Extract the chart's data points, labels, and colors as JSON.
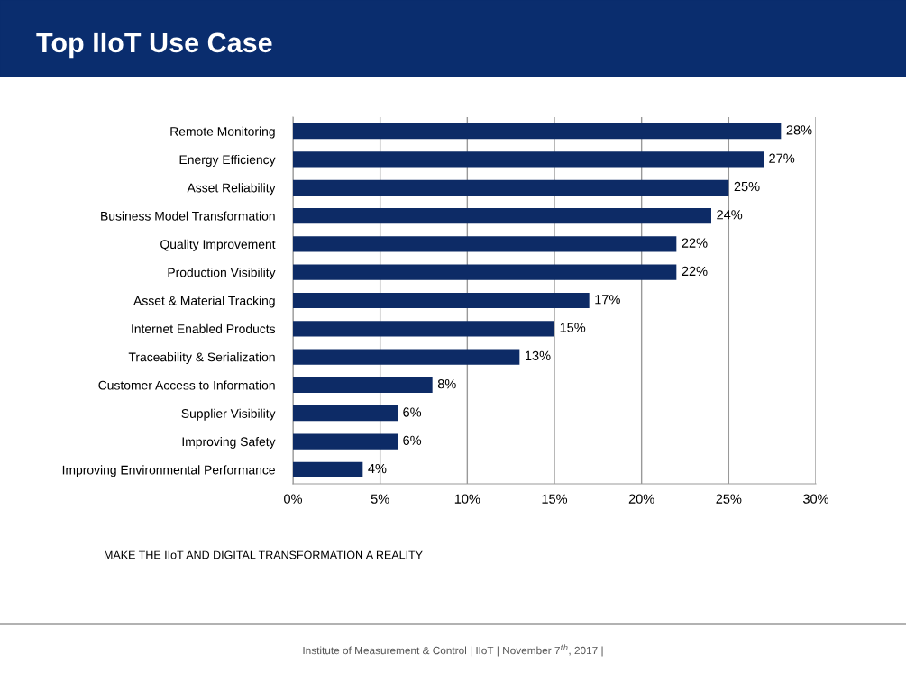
{
  "chart_data": {
    "type": "bar",
    "orientation": "horizontal",
    "title": "Top IIoT Use Case",
    "categories": [
      "Remote Monitoring",
      "Energy Efficiency",
      "Asset Reliability",
      "Business Model Transformation",
      "Quality Improvement",
      "Production Visibility",
      "Asset & Material Tracking",
      "Internet Enabled Products",
      "Traceability & Serialization",
      "Customer Access to Information",
      "Supplier Visibility",
      "Improving Safety",
      "Improving Environmental Performance"
    ],
    "values": [
      28,
      27,
      25,
      24,
      22,
      22,
      17,
      15,
      13,
      8,
      6,
      6,
      4
    ],
    "value_labels": [
      "28%",
      "27%",
      "25%",
      "24%",
      "22%",
      "22%",
      "17%",
      "15%",
      "13%",
      "8%",
      "6%",
      "6%",
      "4%"
    ],
    "color": "#0d2b66",
    "xlim": [
      0,
      30
    ],
    "xticks": [
      {
        "value": 0,
        "label": "0%"
      },
      {
        "value": 5,
        "label": "5%"
      },
      {
        "value": 10,
        "label": "10%"
      },
      {
        "value": 15,
        "label": "15%"
      },
      {
        "value": 20,
        "label": "20%"
      },
      {
        "value": 25,
        "label": "25%"
      },
      {
        "value": 30,
        "label": "30%"
      }
    ],
    "grid": "x",
    "legend": false,
    "annotations": [
      "MAKE THE IIoT AND DIGITAL TRANSFORMATION A REALITY",
      "Institute of Measurement & Control | IIoT | November 7$^{th}$, 2017 |"
    ]
  }
}
